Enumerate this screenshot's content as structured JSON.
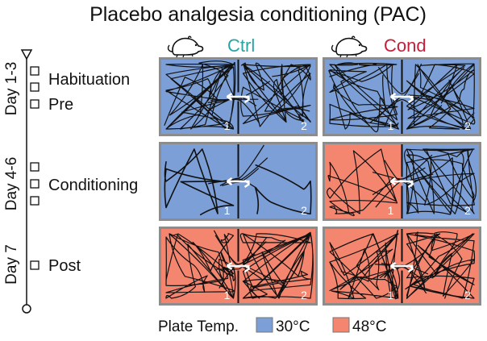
{
  "title": "Placebo analgesia conditioning (PAC)",
  "groups": {
    "ctrl": {
      "label": "Ctrl",
      "color": "#2aa3a3",
      "icon": "mouse-icon"
    },
    "cond": {
      "label": "Cond",
      "color": "#c41e3a",
      "icon": "mouse-icon"
    }
  },
  "timeline": {
    "periods": [
      {
        "day_label": "Day 1-3"
      },
      {
        "day_label": "Day 4-6"
      },
      {
        "day_label": "Day 7"
      }
    ],
    "phases": [
      {
        "label": "Habituation"
      },
      {
        "label": "Pre"
      },
      {
        "label": "Conditioning"
      },
      {
        "label": "Post"
      }
    ]
  },
  "chamber_labels": {
    "left": "1",
    "right": "2"
  },
  "rows": [
    {
      "phase": "Pre",
      "ctrl": [
        "30°C",
        "30°C"
      ],
      "cond": [
        "30°C",
        "30°C"
      ]
    },
    {
      "phase": "Conditioning",
      "ctrl": [
        "30°C",
        "30°C"
      ],
      "cond": [
        "48°C",
        "30°C"
      ]
    },
    {
      "phase": "Post",
      "ctrl": [
        "48°C",
        "48°C"
      ],
      "cond": [
        "48°C",
        "48°C"
      ]
    }
  ],
  "legend": {
    "title": "Plate Temp.",
    "items": [
      {
        "label": "30°C",
        "color": "#7b9fd6"
      },
      {
        "label": "48°C",
        "color": "#f4866f"
      }
    ]
  },
  "colors": {
    "cool_plate": "#7b9fd6",
    "hot_plate": "#f4866f",
    "frame": "#8c8c8c",
    "trace": "#111111",
    "arrow": "#ffffff"
  }
}
